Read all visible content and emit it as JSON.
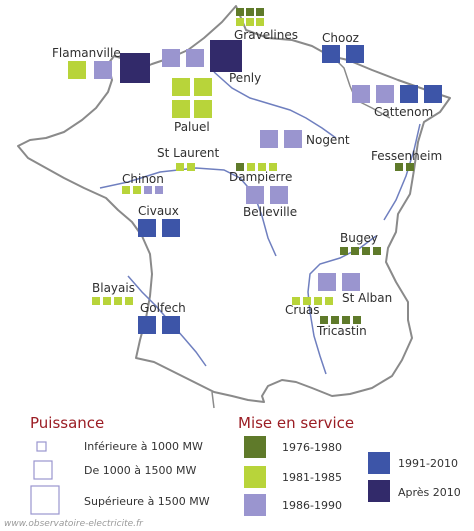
{
  "colors": {
    "c1976": "#5f7a2a",
    "c1981": "#b8d43a",
    "c1986": "#9a95cf",
    "c1991": "#3d55a8",
    "c2010": "#322a6a",
    "border": "#8a8a8a",
    "river": "#6f7fbf",
    "legend_title": "#9b1d24"
  },
  "plants": [
    {
      "name": "Gravelines",
      "years": [
        "1976-1980",
        "1976-1980",
        "1976-1980",
        "1981-1985",
        "1981-1985",
        "1981-1985"
      ],
      "size": "medium"
    },
    {
      "name": "Chooz",
      "years": [
        "1991-2010",
        "1991-2010"
      ],
      "size": "large"
    },
    {
      "name": "Flamanville",
      "years": [
        "1981-1985",
        "1986-1990",
        "Après 2010"
      ],
      "size": "large"
    },
    {
      "name": "Penly",
      "years": [
        "1986-1990",
        "1986-1990"
      ],
      "size": "large"
    },
    {
      "name": "Paluel",
      "years": [
        "1981-1985",
        "1981-1985",
        "1981-1985",
        "1981-1985"
      ],
      "size": "large"
    },
    {
      "name": "Cattenom",
      "years": [
        "1986-1990",
        "1986-1990",
        "1991-2010",
        "1991-2010"
      ],
      "size": "large"
    },
    {
      "name": "Nogent",
      "years": [
        "1986-1990",
        "1986-1990"
      ],
      "size": "large"
    },
    {
      "name": "St Laurent",
      "years": [
        "1981-1985",
        "1981-1985"
      ],
      "size": "medium"
    },
    {
      "name": "Fessenheim",
      "years": [
        "1976-1980",
        "1976-1980"
      ],
      "size": "medium"
    },
    {
      "name": "Dampierre",
      "years": [
        "1976-1980",
        "1981-1985",
        "1981-1985",
        "1981-1985"
      ],
      "size": "medium"
    },
    {
      "name": "Chinon",
      "years": [
        "1981-1985",
        "1981-1985",
        "1986-1990",
        "1986-1990"
      ],
      "size": "medium"
    },
    {
      "name": "Belleville",
      "years": [
        "1986-1990",
        "1986-1990"
      ],
      "size": "large"
    },
    {
      "name": "Civaux",
      "years": [
        "1991-2010",
        "1991-2010"
      ],
      "size": "large"
    },
    {
      "name": "Bugey",
      "years": [
        "1976-1980",
        "1976-1980",
        "1976-1980",
        "1976-1980"
      ],
      "size": "medium"
    },
    {
      "name": "Blayais",
      "years": [
        "1981-1985",
        "1981-1985",
        "1981-1985",
        "1981-1985"
      ],
      "size": "medium"
    },
    {
      "name": "St Alban",
      "years": [
        "1986-1990",
        "1986-1990"
      ],
      "size": "large"
    },
    {
      "name": "Cruas",
      "years": [
        "1981-1985",
        "1981-1985",
        "1981-1985",
        "1981-1985"
      ],
      "size": "medium"
    },
    {
      "name": "Golfech",
      "years": [
        "1991-2010",
        "1991-2010"
      ],
      "size": "large"
    },
    {
      "name": "Tricastin",
      "years": [
        "1976-1980",
        "1976-1980",
        "1976-1980",
        "1976-1980"
      ],
      "size": "medium"
    }
  ],
  "legend": {
    "puissance_title": "Puissance",
    "power": [
      {
        "label": "Inférieure à 1000 MW",
        "size": "small"
      },
      {
        "label": "De 1000 à 1500 MW",
        "size": "medium"
      },
      {
        "label": "Supérieure à 1500 MW",
        "size": "large"
      }
    ],
    "mise_title": "Mise en service",
    "periods": [
      {
        "label": "1976-1980",
        "color": "#5f7a2a"
      },
      {
        "label": "1981-1985",
        "color": "#b8d43a"
      },
      {
        "label": "1986-1990",
        "color": "#9a95cf"
      },
      {
        "label": "1991-2010",
        "color": "#3d55a8"
      },
      {
        "label": "Après 2010",
        "color": "#322a6a"
      }
    ]
  },
  "credit": "www.observatoire-electricite.fr"
}
